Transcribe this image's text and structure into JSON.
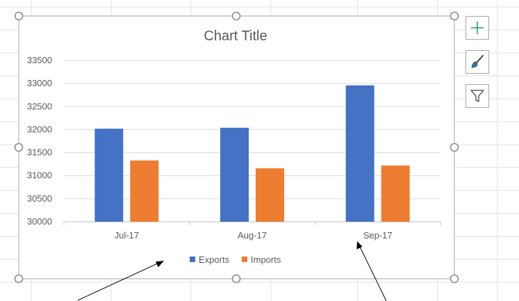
{
  "spreadsheet": {
    "gridline_color": "#e1e1e1"
  },
  "chart_data": {
    "type": "bar",
    "title": "Chart Title",
    "categories": [
      "Jul-17",
      "Aug-17",
      "Sep-17"
    ],
    "series": [
      {
        "name": "Exports",
        "color": "#4472c4",
        "values": [
          32020,
          32040,
          32960
        ]
      },
      {
        "name": "Imports",
        "color": "#ed7d31",
        "values": [
          31330,
          31160,
          31220
        ]
      }
    ],
    "ylim": [
      30000,
      33500
    ],
    "yticks": [
      "30000",
      "30500",
      "31000",
      "31500",
      "32000",
      "32500",
      "33000",
      "33500"
    ],
    "grid": true,
    "legend": "bottom",
    "xlabel": "",
    "ylabel": ""
  },
  "chart_tools": {
    "elements_icon": "plus-icon",
    "styles_icon": "paintbrush-icon",
    "filters_icon": "funnel-icon",
    "plus_color": "#21a366"
  }
}
